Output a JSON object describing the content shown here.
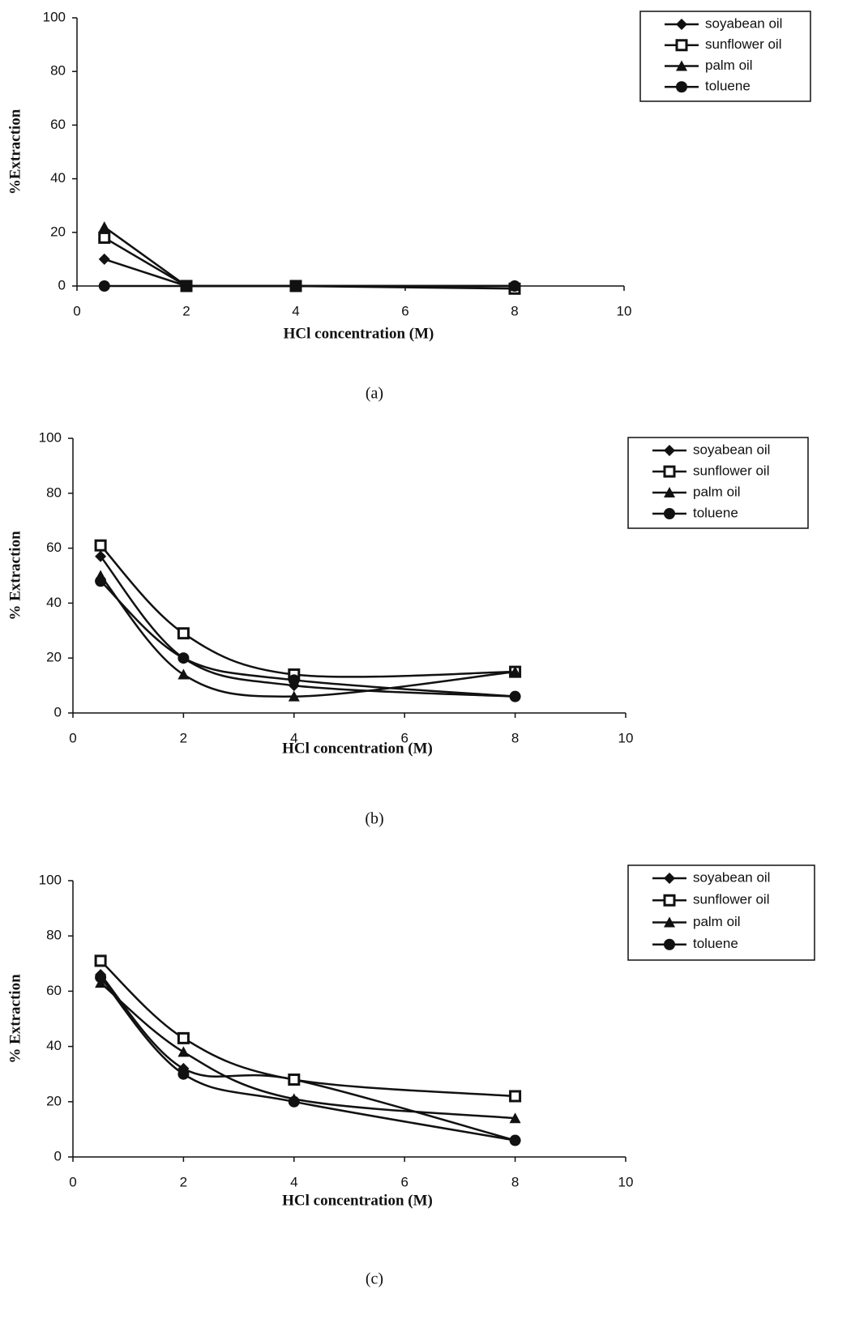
{
  "chart_data": [
    {
      "type": "line",
      "caption": "(a)",
      "xlabel": "HCl concentration (M)",
      "ylabel": "%Extraction",
      "x": [
        0.5,
        2,
        4,
        8
      ],
      "xlim": [
        0,
        10
      ],
      "xticks": [
        0,
        2,
        4,
        6,
        8,
        10
      ],
      "ylim": [
        0,
        100
      ],
      "yticks": [
        0,
        20,
        40,
        60,
        80,
        100
      ],
      "smooth": false,
      "legend": "upper right",
      "series": [
        {
          "name": "soyabean oil",
          "color": "#111",
          "marker": "diamond",
          "values": [
            10,
            0,
            0,
            0
          ]
        },
        {
          "name": "sunflower oil",
          "color": "#111",
          "marker": "square",
          "values": [
            18,
            0,
            0,
            -1
          ]
        },
        {
          "name": "palm oil",
          "color": "#111",
          "marker": "triangle",
          "values": [
            22,
            0,
            0,
            0
          ]
        },
        {
          "name": "toluene",
          "color": "#111",
          "marker": "circle",
          "values": [
            0,
            0,
            0,
            0
          ]
        }
      ]
    },
    {
      "type": "line",
      "caption": "(b)",
      "xlabel": "HCl concentration (M)",
      "ylabel": "% Extraction",
      "x": [
        0.5,
        2,
        4,
        8
      ],
      "xlim": [
        0,
        10
      ],
      "xticks": [
        0,
        2,
        4,
        6,
        8,
        10
      ],
      "ylim": [
        0,
        100
      ],
      "yticks": [
        0,
        20,
        40,
        60,
        80,
        100
      ],
      "smooth": true,
      "legend": "upper right",
      "series": [
        {
          "name": "soyabean oil",
          "color": "#111",
          "marker": "diamond",
          "values": [
            57,
            20,
            10,
            6
          ]
        },
        {
          "name": "sunflower oil",
          "color": "#111",
          "marker": "square",
          "values": [
            61,
            29,
            14,
            15
          ]
        },
        {
          "name": "palm oil",
          "color": "#111",
          "marker": "triangle",
          "values": [
            50,
            14,
            6,
            15
          ]
        },
        {
          "name": "toluene",
          "color": "#111",
          "marker": "circle",
          "values": [
            48,
            20,
            12,
            6
          ]
        }
      ]
    },
    {
      "type": "line",
      "caption": "(c)",
      "xlabel": "HCl concentration (M)",
      "ylabel": "% Extraction",
      "x": [
        0.5,
        2,
        4,
        8
      ],
      "xlim": [
        0,
        10
      ],
      "xticks": [
        0,
        2,
        4,
        6,
        8,
        10
      ],
      "ylim": [
        0,
        100
      ],
      "yticks": [
        0,
        20,
        40,
        60,
        80,
        100
      ],
      "smooth": true,
      "legend": "upper right",
      "series": [
        {
          "name": "soyabean oil",
          "color": "#111",
          "marker": "diamond",
          "values": [
            66,
            32,
            28,
            6
          ]
        },
        {
          "name": "sunflower oil",
          "color": "#111",
          "marker": "square",
          "values": [
            71,
            43,
            28,
            22
          ]
        },
        {
          "name": "palm oil",
          "color": "#111",
          "marker": "triangle",
          "values": [
            63,
            38,
            21,
            14
          ]
        },
        {
          "name": "toluene",
          "color": "#111",
          "marker": "circle",
          "values": [
            65,
            30,
            20,
            6
          ]
        }
      ]
    }
  ]
}
